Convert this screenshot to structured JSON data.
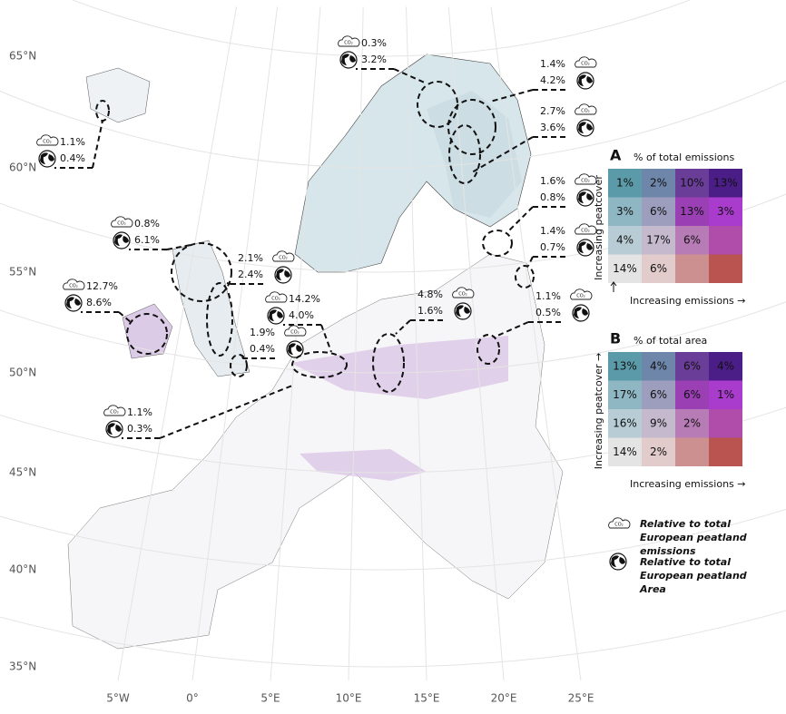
{
  "map": {
    "lat_labels": [
      "65°N",
      "60°N",
      "55°N",
      "50°N",
      "45°N",
      "40°N",
      "35°N"
    ],
    "lon_labels": [
      "5°W",
      "0°",
      "5°E",
      "10°E",
      "15°E",
      "20°E",
      "25°E"
    ],
    "co2_icon_text": "CO₂",
    "callouts": [
      {
        "emissions": "1.1%",
        "area": "0.4%"
      },
      {
        "emissions": "0.3%",
        "area": "3.2%"
      },
      {
        "emissions": "1.4%",
        "area": "4.2%"
      },
      {
        "emissions": "2.7%",
        "area": "3.6%"
      },
      {
        "emissions": "0.8%",
        "area": "6.1%"
      },
      {
        "emissions": "12.7%",
        "area": "8.6%"
      },
      {
        "emissions": "2.1%",
        "area": "2.4%"
      },
      {
        "emissions": "1.9%",
        "area": "0.4%"
      },
      {
        "emissions": "14.2%",
        "area": "4.0%"
      },
      {
        "emissions": "1.1%",
        "area": "0.3%"
      },
      {
        "emissions": "4.8%",
        "area": "1.6%"
      },
      {
        "emissions": "1.6%",
        "area": "0.8%"
      },
      {
        "emissions": "1.4%",
        "area": "0.7%"
      },
      {
        "emissions": "1.1%",
        "area": "0.5%"
      }
    ]
  },
  "legend_colors": [
    [
      "#5b9ba9",
      "#6e86a9",
      "#6a3d98",
      "#4b1d87"
    ],
    [
      "#8fb6c3",
      "#9d9ebd",
      "#9a3fb4",
      "#a93ccd"
    ],
    [
      "#b7ccd4",
      "#c4b9cd",
      "#b77cb6",
      "#b04ca9"
    ],
    [
      "#e4e4e4",
      "#e1cbcb",
      "#cd9090",
      "#b95451"
    ]
  ],
  "legend_a": {
    "letter": "A",
    "title": "% of total emissions",
    "y_label": "Increasing peatcover",
    "x_label": "Increasing emissions →",
    "cells": [
      [
        "1%",
        "2%",
        "10%",
        "13%"
      ],
      [
        "3%",
        "6%",
        "13%",
        "3%"
      ],
      [
        "4%",
        "17%",
        "6%",
        null
      ],
      [
        "14%",
        "6%",
        null,
        null
      ]
    ]
  },
  "legend_b": {
    "letter": "B",
    "title": "% of total area",
    "y_label": "Increasing peatcover →",
    "x_label": "Increasing emissions →",
    "cells": [
      [
        "13%",
        "4%",
        "6%",
        "4%"
      ],
      [
        "17%",
        "6%",
        "6%",
        "1%"
      ],
      [
        "16%",
        "9%",
        "2%",
        null
      ],
      [
        "14%",
        "2%",
        null,
        null
      ]
    ]
  },
  "notes": {
    "emissions": "Relative to total European peatland emissions",
    "area": "Relative to total European peatland Area"
  }
}
